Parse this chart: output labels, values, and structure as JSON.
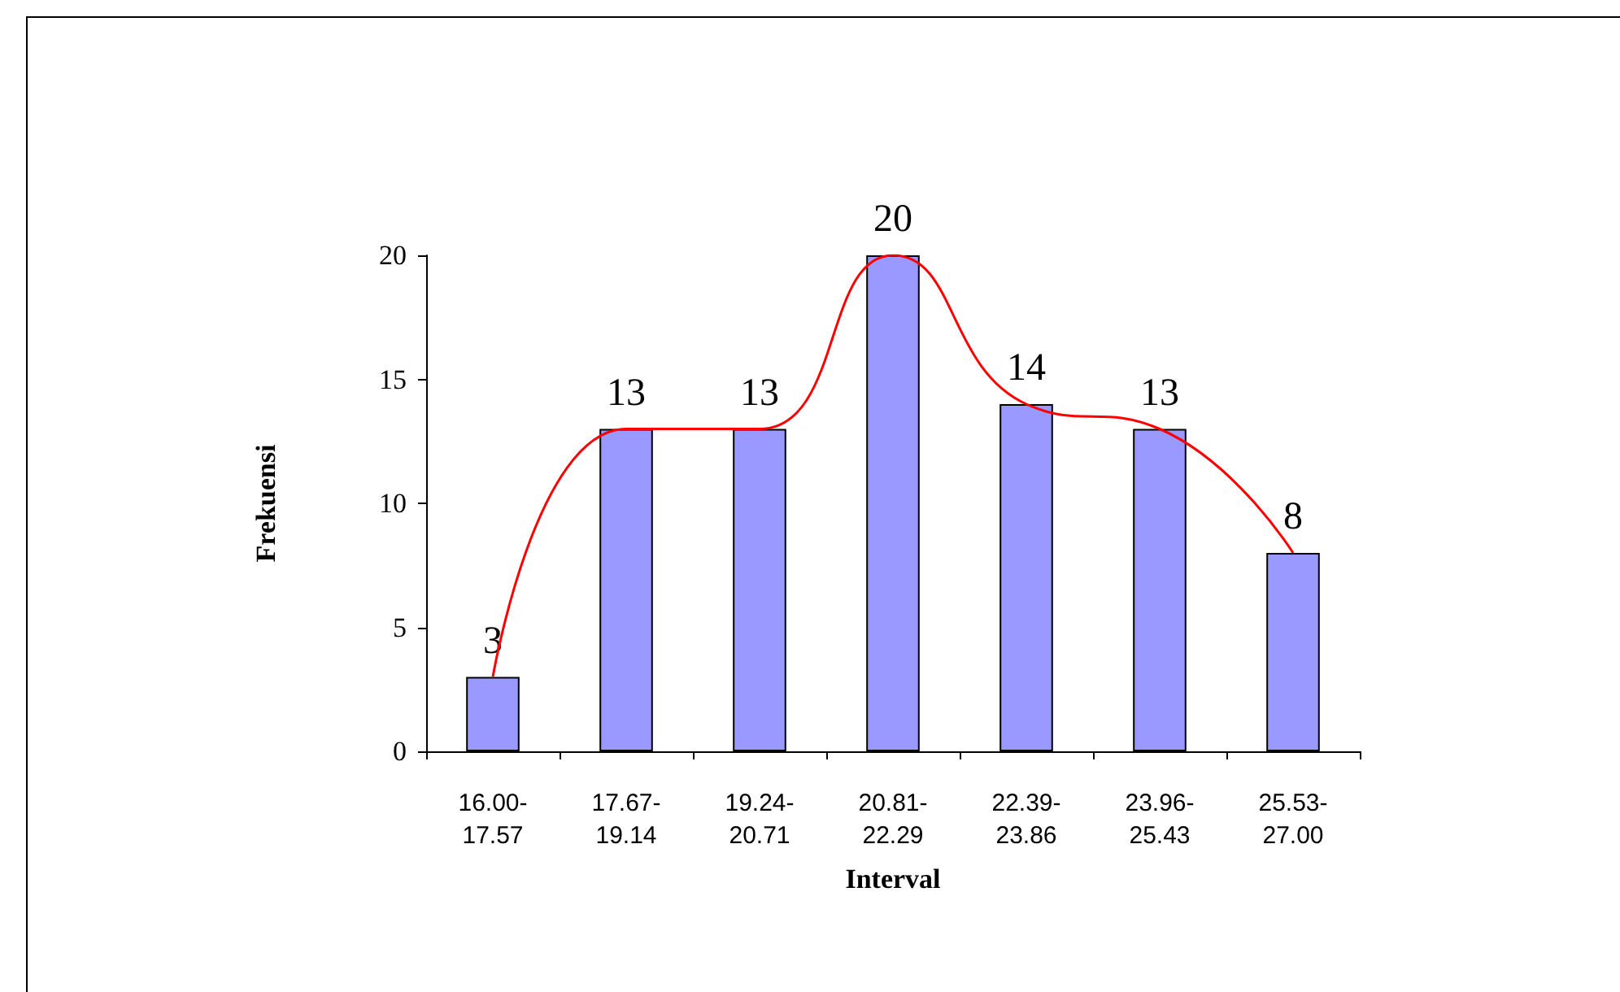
{
  "chart_data": {
    "type": "bar",
    "xlabel": "Interval",
    "ylabel": "Frekuensi",
    "categories": [
      "16.00-17.57",
      "17.67-19.14",
      "19.24-20.71",
      "20.81-22.29",
      "22.39-23.86",
      "23.96-25.43",
      "25.53-27.00"
    ],
    "series": [
      {
        "color": "#9999ff",
        "values": [
          3,
          13,
          13,
          20,
          14,
          13,
          8
        ],
        "value_labels": [
          "3",
          "13",
          "13",
          "20",
          "14",
          "13",
          "8"
        ]
      },
      {
        "type": "line",
        "color": "#ff0000",
        "values": [
          3,
          13,
          13,
          20,
          14,
          13,
          8
        ],
        "marker": "none",
        "line_style": "solid"
      }
    ],
    "ylim": [
      0,
      20
    ],
    "yticks": [
      0,
      5,
      10,
      15,
      20
    ],
    "grid": false
  }
}
